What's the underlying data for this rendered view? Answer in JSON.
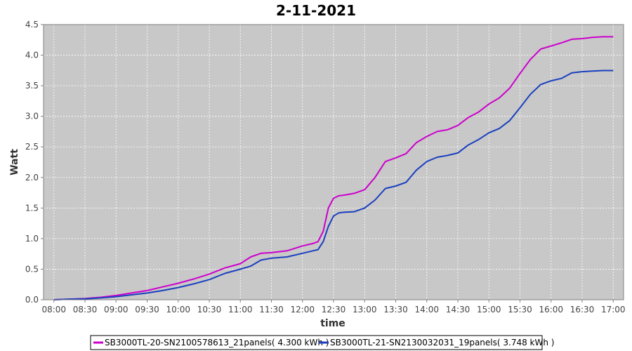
{
  "chart_data": {
    "type": "line",
    "title": "2-11-2021",
    "xlabel": "time",
    "ylabel": "Watt",
    "ylim": [
      0,
      4.5
    ],
    "yticks": [
      "0.0",
      "0.5",
      "1.0",
      "1.5",
      "2.0",
      "2.5",
      "3.0",
      "3.5",
      "4.0",
      "4.5"
    ],
    "xlim": [
      "07:50",
      "17:10"
    ],
    "xticks": [
      "08:00",
      "08:30",
      "09:00",
      "09:30",
      "10:00",
      "10:30",
      "11:00",
      "11:30",
      "12:00",
      "12:30",
      "13:00",
      "13:30",
      "14:00",
      "14:30",
      "15:00",
      "15:30",
      "16:00",
      "16:30",
      "17:00"
    ],
    "grid": true,
    "legend_position": "bottom",
    "x": [
      "08:00",
      "08:15",
      "08:30",
      "08:45",
      "09:00",
      "09:15",
      "09:30",
      "09:45",
      "10:00",
      "10:15",
      "10:30",
      "10:45",
      "11:00",
      "11:10",
      "11:20",
      "11:30",
      "11:45",
      "12:00",
      "12:10",
      "12:15",
      "12:20",
      "12:25",
      "12:30",
      "12:35",
      "12:40",
      "12:50",
      "13:00",
      "13:10",
      "13:20",
      "13:30",
      "13:40",
      "13:50",
      "14:00",
      "14:10",
      "14:20",
      "14:30",
      "14:40",
      "14:50",
      "15:00",
      "15:10",
      "15:20",
      "15:30",
      "15:40",
      "15:50",
      "16:00",
      "16:10",
      "16:20",
      "16:30",
      "16:40",
      "16:50",
      "17:00"
    ],
    "series": [
      {
        "name": "SB3000TL-20-SN2100578613_21panels( 4.300 kWh )",
        "color": "#cc00cc",
        "values": [
          0.0,
          0.01,
          0.02,
          0.04,
          0.07,
          0.11,
          0.15,
          0.21,
          0.27,
          0.34,
          0.42,
          0.52,
          0.59,
          0.7,
          0.76,
          0.77,
          0.8,
          0.88,
          0.92,
          0.95,
          1.12,
          1.5,
          1.66,
          1.7,
          1.71,
          1.74,
          1.8,
          2.0,
          2.26,
          2.32,
          2.39,
          2.57,
          2.67,
          2.75,
          2.78,
          2.85,
          2.98,
          3.07,
          3.2,
          3.3,
          3.46,
          3.7,
          3.93,
          4.1,
          4.15,
          4.2,
          4.26,
          4.27,
          4.29,
          4.3,
          4.3
        ]
      },
      {
        "name": "SB3000TL-21-SN2130032031_19panels( 3.748 kWh )",
        "color": "#1a3fbf",
        "values": [
          0.0,
          0.01,
          0.015,
          0.03,
          0.05,
          0.08,
          0.11,
          0.15,
          0.2,
          0.26,
          0.33,
          0.43,
          0.5,
          0.55,
          0.65,
          0.68,
          0.7,
          0.76,
          0.8,
          0.82,
          0.95,
          1.2,
          1.37,
          1.42,
          1.43,
          1.44,
          1.5,
          1.63,
          1.82,
          1.86,
          1.92,
          2.12,
          2.26,
          2.33,
          2.36,
          2.4,
          2.53,
          2.62,
          2.73,
          2.8,
          2.93,
          3.14,
          3.36,
          3.52,
          3.58,
          3.62,
          3.71,
          3.73,
          3.74,
          3.748,
          3.748
        ]
      }
    ]
  }
}
